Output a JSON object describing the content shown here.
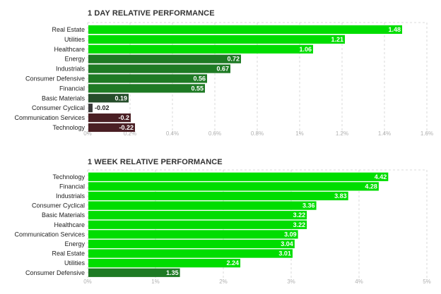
{
  "chart_data": [
    {
      "type": "bar",
      "orientation": "horizontal",
      "title": "1 DAY RELATIVE PERFORMANCE",
      "categories": [
        "Real Estate",
        "Utilities",
        "Healthcare",
        "Energy",
        "Industrials",
        "Consumer Defensive",
        "Financial",
        "Basic Materials",
        "Consumer Cyclical",
        "Communication Services",
        "Technology"
      ],
      "values": [
        1.48,
        1.21,
        1.06,
        0.72,
        0.67,
        0.56,
        0.55,
        0.19,
        -0.02,
        -0.2,
        -0.22
      ],
      "value_labels": [
        "1.48",
        "1.21",
        "1.06",
        "0.72",
        "0.67",
        "0.56",
        "0.55",
        "0.19",
        "-0.02",
        "-0.2",
        "-0.22"
      ],
      "xlim": [
        0,
        1.6
      ],
      "xticks": [
        0,
        0.2,
        0.4,
        0.6,
        0.8,
        1.0,
        1.2,
        1.4,
        1.6
      ],
      "xtick_labels": [
        "0%",
        "0.2%",
        "0.4%",
        "0.6%",
        "0.8%",
        "1%",
        "1.2%",
        "1.4%",
        "1.6%"
      ],
      "grid": true,
      "colors": {
        "strong": "#00dd00",
        "mid": "#1e7a24",
        "weak": "#254d2a",
        "negative": "#4a1f24",
        "slight_negative": "#3a3a3a"
      }
    },
    {
      "type": "bar",
      "orientation": "horizontal",
      "title": "1 WEEK RELATIVE PERFORMANCE",
      "categories": [
        "Technology",
        "Financial",
        "Industrials",
        "Consumer Cyclical",
        "Basic Materials",
        "Healthcare",
        "Communication Services",
        "Energy",
        "Real Estate",
        "Utilities",
        "Consumer Defensive"
      ],
      "values": [
        4.42,
        4.28,
        3.83,
        3.36,
        3.22,
        3.22,
        3.09,
        3.04,
        3.01,
        2.24,
        1.35
      ],
      "value_labels": [
        "4.42",
        "4.28",
        "3.83",
        "3.36",
        "3.22",
        "3.22",
        "3.09",
        "3.04",
        "3.01",
        "2.24",
        "1.35"
      ],
      "xlim": [
        0,
        5
      ],
      "xticks": [
        0,
        1,
        2,
        3,
        4,
        5
      ],
      "xtick_labels": [
        "0%",
        "1%",
        "2%",
        "3%",
        "4%",
        "5%"
      ],
      "grid": true,
      "colors": {
        "strong": "#00dd00",
        "mid": "#1e7a24"
      }
    }
  ]
}
